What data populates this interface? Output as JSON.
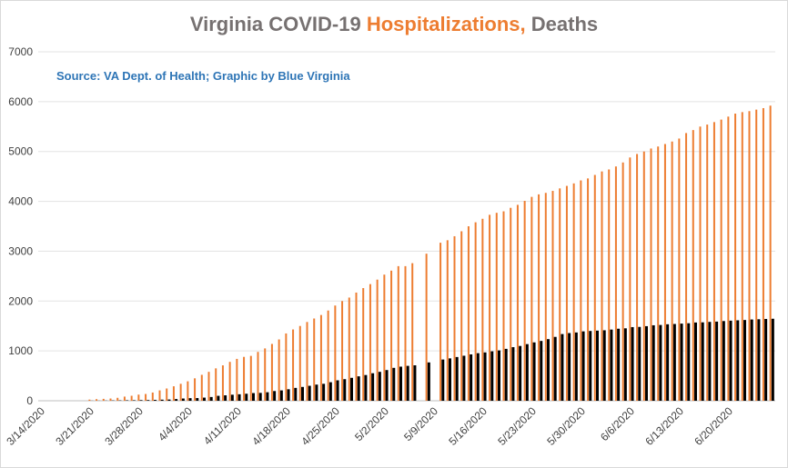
{
  "chart_data": {
    "type": "bar",
    "title": [
      "Virginia COVID-19",
      "Hospitalizations,",
      "Deaths"
    ],
    "annotation": "Source: VA Dept. of Health; Graphic by Blue Virginia",
    "categories": [
      "3/14/2020",
      null,
      null,
      null,
      null,
      null,
      null,
      "3/21/2020",
      null,
      null,
      null,
      null,
      null,
      null,
      "3/28/2020",
      null,
      null,
      null,
      null,
      null,
      null,
      "4/4/2020",
      null,
      null,
      null,
      null,
      null,
      null,
      "4/11/2020",
      null,
      null,
      null,
      null,
      null,
      null,
      "4/18/2020",
      null,
      null,
      null,
      null,
      null,
      null,
      "4/25/2020",
      null,
      null,
      null,
      null,
      null,
      null,
      "5/2/2020",
      null,
      null,
      null,
      null,
      null,
      null,
      "5/9/2020",
      null,
      null,
      null,
      null,
      null,
      null,
      "5/16/2020",
      null,
      null,
      null,
      null,
      null,
      null,
      "5/23/2020",
      null,
      null,
      null,
      null,
      null,
      null,
      "5/30/2020",
      null,
      null,
      null,
      null,
      null,
      null,
      "6/6/2020",
      null,
      null,
      null,
      null,
      null,
      null,
      "6/13/2020",
      null,
      null,
      null,
      null,
      null,
      null,
      "6/20/2020",
      null,
      null,
      null,
      null,
      null,
      null
    ],
    "series": [
      {
        "color": "#ed7d31",
        "values": [
          0,
          0,
          0,
          0,
          0,
          0,
          0,
          23,
          32,
          38,
          45,
          59,
          83,
          100,
          123,
          136,
          165,
          208,
          246,
          290,
          340,
          390,
          450,
          520,
          580,
          650,
          710,
          780,
          840,
          880,
          900,
          980,
          1050,
          1140,
          1230,
          1350,
          1430,
          1500,
          1580,
          1650,
          1720,
          1810,
          1910,
          2000,
          2070,
          2170,
          2260,
          2340,
          2430,
          2530,
          2610,
          2700,
          2700,
          2760,
          null,
          2950,
          null,
          3170,
          3220,
          3300,
          3400,
          3500,
          3580,
          3650,
          3730,
          3770,
          3800,
          3870,
          3930,
          4010,
          4090,
          4140,
          4170,
          4210,
          4260,
          4310,
          4360,
          4420,
          4460,
          4530,
          4600,
          4640,
          4700,
          4780,
          4880,
          4950,
          5000,
          5060,
          5100,
          5150,
          5200,
          5260,
          5370,
          5430,
          5500,
          5540,
          5590,
          5640,
          5700,
          5760,
          5790,
          5810,
          5840,
          5870,
          5920
        ]
      },
      {
        "color": "#000000",
        "values": [
          0,
          0,
          0,
          0,
          0,
          0,
          0,
          2,
          2,
          3,
          6,
          7,
          9,
          10,
          13,
          14,
          17,
          22,
          25,
          34,
          45,
          52,
          54,
          63,
          75,
          99,
          109,
          121,
          130,
          141,
          154,
          158,
          171,
          195,
          208,
          231,
          258,
          277,
          300,
          324,
          340,
          372,
          410,
          433,
          460,
          490,
          516,
          552,
          580,
          616,
          660,
          684,
          700,
          711,
          null,
          769,
          null,
          827,
          850,
          877,
          903,
          930,
          955,
          970,
          992,
          1010,
          1041,
          1075,
          1099,
          1136,
          1171,
          1200,
          1236,
          1281,
          1338,
          1358,
          1370,
          1392,
          1400,
          1407,
          1414,
          1428,
          1445,
          1453,
          1477,
          1481,
          1496,
          1514,
          1520,
          1534,
          1540,
          1548,
          1555,
          1570,
          1573,
          1582,
          1588,
          1599,
          1607,
          1614,
          1620,
          1630,
          1635,
          1641,
          1645
        ]
      }
    ],
    "ylim": [
      0,
      7000
    ],
    "yticks": [
      0,
      1000,
      2000,
      3000,
      4000,
      5000,
      6000,
      7000
    ],
    "grid": true
  }
}
